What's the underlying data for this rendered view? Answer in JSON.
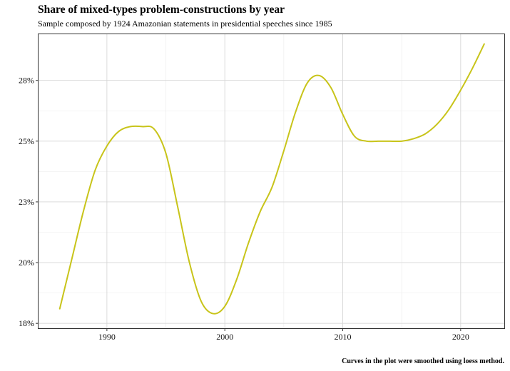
{
  "chart_data": {
    "type": "line",
    "title": "Share of mixed-types problem-constructions by year",
    "subtitle": "Sample composed by 1924 Amazonian statements in presidential speeches since 1985",
    "caption": "Curves in the plot were smoothed using loess method.",
    "xlabel": "",
    "ylabel": "",
    "xlim": [
      1984.2,
      2023.7
    ],
    "ylim": [
      17.8,
      29.9
    ],
    "x_ticks": [
      1990,
      2000,
      2010,
      2020
    ],
    "x_tick_labels": [
      "1990",
      "2000",
      "2010",
      "2020"
    ],
    "y_ticks": [
      18,
      20.5,
      23,
      25.5,
      28
    ],
    "y_tick_labels": [
      "18%",
      "20%",
      "23%",
      "25%",
      "28%"
    ],
    "grid": true,
    "legend": "none",
    "line_color": "#c8c41a",
    "series": [
      {
        "x": [
          1986,
          1987,
          1988,
          1989,
          1990,
          1991,
          1992,
          1993,
          1994,
          1995,
          1996,
          1997,
          1998,
          1999,
          2000,
          2001,
          2002,
          2003,
          2004,
          2005,
          2006,
          2007,
          2008,
          2009,
          2010,
          2011,
          2012,
          2013,
          2014,
          2015,
          2016,
          2017,
          2018,
          2019,
          2020,
          2021,
          2022
        ],
        "y": [
          18.6,
          20.6,
          22.6,
          24.3,
          25.3,
          25.9,
          26.1,
          26.1,
          26.0,
          25.0,
          22.8,
          20.5,
          18.9,
          18.4,
          18.7,
          19.8,
          21.3,
          22.6,
          23.6,
          25.1,
          26.7,
          27.9,
          28.2,
          27.7,
          26.6,
          25.7,
          25.5,
          25.5,
          25.5,
          25.5,
          25.6,
          25.8,
          26.2,
          26.8,
          27.6,
          28.5,
          29.5
        ]
      }
    ]
  }
}
